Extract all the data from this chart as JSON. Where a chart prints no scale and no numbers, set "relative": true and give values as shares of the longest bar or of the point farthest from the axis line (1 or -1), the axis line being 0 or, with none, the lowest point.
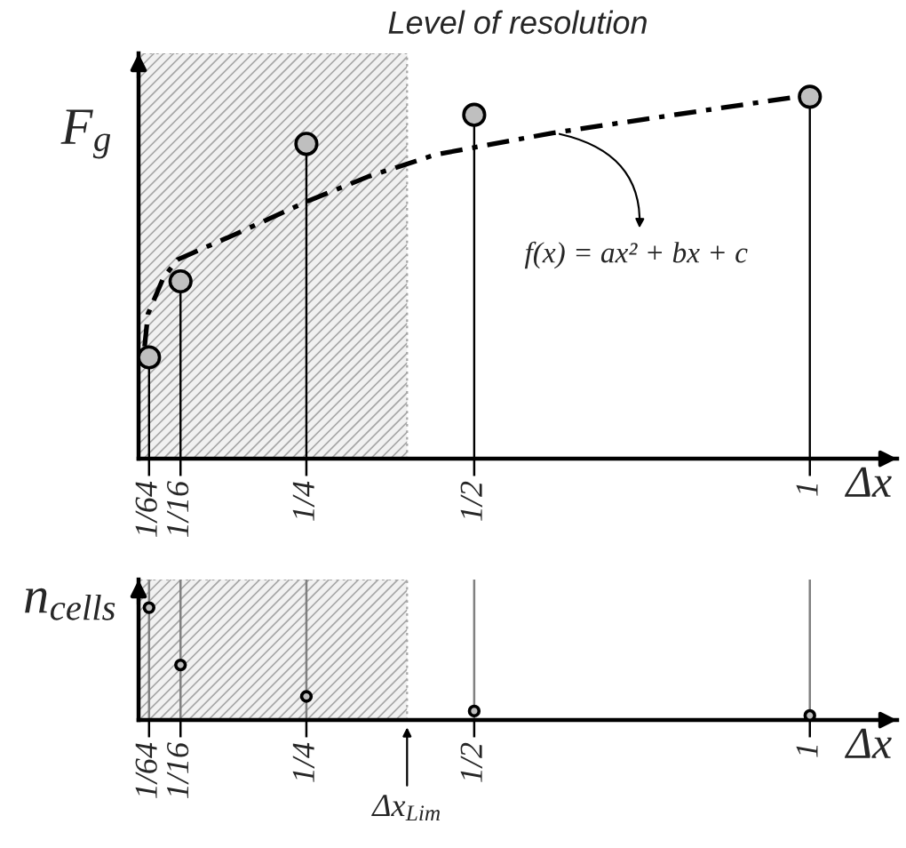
{
  "chart_data": [
    {
      "type": "lollipop",
      "title": "Level of resolution",
      "xlabel": "Δx",
      "ylabel": "F$_{g}$",
      "relative": true,
      "marker": "circle",
      "tick_labels": "x",
      "x": [
        0.015625,
        0.0625,
        0.25,
        0.5,
        1
      ],
      "xlim": [
        0,
        1.13
      ],
      "xticks": [
        {
          "value": 0.015625,
          "label": "1/64"
        },
        {
          "value": 0.0625,
          "label": "1/16"
        },
        {
          "value": 0.25,
          "label": "1/4"
        },
        {
          "value": 0.5,
          "label": "1/2"
        },
        1
      ],
      "series": [
        {
          "type": "lollipop",
          "color": "#bfbfbf",
          "values": [
            0.28,
            0.49,
            0.87,
            0.95,
            1
          ]
        },
        {
          "type": "line",
          "color": "#000000",
          "line_style": "dashdot",
          "marker": "none",
          "x": [
            0.009,
            0.014,
            0.037,
            0.058,
            0.144,
            0.25,
            0.343,
            0.442,
            0.617,
            0.798,
            0.981
          ],
          "values": [
            0.31,
            0.4,
            0.5,
            0.55,
            0.62,
            0.71,
            0.78,
            0.84,
            0.9,
            0.95,
            1
          ]
        }
      ],
      "bands": [
        {
          "axis": "x",
          "from": 0,
          "to": 0.4,
          "color": "#a6a6a6"
        }
      ],
      "annotations": [
        {
          "text": "f(x) = ax² + bx + c",
          "x": 0.62,
          "y": 0.9
        }
      ]
    },
    {
      "type": "scatter",
      "xlabel": "Δx",
      "ylabel": "n$_{cells}$",
      "relative": true,
      "marker": "circle",
      "tick_labels": "x",
      "grid": "x",
      "x": [
        0.015625,
        0.0625,
        0.25,
        0.5,
        1
      ],
      "xlim": [
        0,
        1.13
      ],
      "xticks": [
        {
          "value": 0.015625,
          "label": "1/64"
        },
        {
          "value": 0.0625,
          "label": "1/16"
        },
        {
          "value": 0.25,
          "label": "1/4"
        },
        {
          "value": 0.5,
          "label": "1/2"
        },
        1
      ],
      "series": [
        {
          "color": "#bfbfbf",
          "values": [
            1,
            0.49,
            0.21,
            0.08,
            0.04
          ]
        }
      ],
      "bands": [
        {
          "axis": "x",
          "from": 0,
          "to": 0.4,
          "color": "#a6a6a6",
          "label": "Δx$_{Lim}$"
        }
      ]
    }
  ]
}
